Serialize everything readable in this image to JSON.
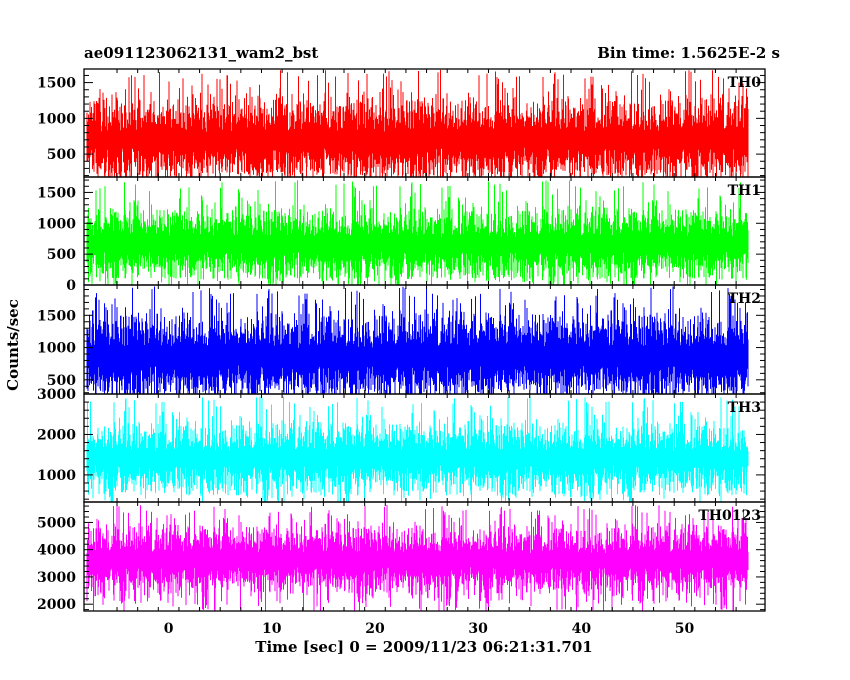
{
  "header": {
    "title_left": "ae091123062131_wam2_bst",
    "title_right": "Bin time: 1.5625E-2 s"
  },
  "axes": {
    "xlabel": "Time [sec] 0 = 2009/11/23 06:21:31.701",
    "ylabel": "Counts/sec"
  },
  "chart_data": {
    "type": "line",
    "xlim": [
      -8.2,
      57.8
    ],
    "x_data_range": [
      -7.9,
      56.1
    ],
    "x_ticks": [
      0,
      10,
      20,
      30,
      40,
      50
    ],
    "grid": false,
    "series": [
      {
        "name": "TH0",
        "color": "#ff0000",
        "ylim": [
          180,
          1690
        ],
        "y_ticks": [
          500,
          1000,
          1500
        ],
        "mean": 700,
        "spread": 300,
        "low_envelope": 250,
        "peak_max": 1680
      },
      {
        "name": "TH1",
        "color": "#00ff00",
        "ylim": [
          0,
          1750
        ],
        "y_ticks": [
          0,
          500,
          1000,
          1500
        ],
        "mean": 650,
        "spread": 300,
        "low_envelope": 120,
        "peak_max": 1700
      },
      {
        "name": "TH2",
        "color": "#0000ff",
        "ylim": [
          280,
          1970
        ],
        "y_ticks": [
          500,
          1000,
          1500
        ],
        "mean": 850,
        "spread": 350,
        "low_envelope": 380,
        "peak_max": 1950
      },
      {
        "name": "TH3",
        "color": "#00ffff",
        "ylim": [
          330,
          3000
        ],
        "y_ticks": [
          1000,
          2000,
          3000
        ],
        "mean": 1400,
        "spread": 450,
        "low_envelope": 550,
        "peak_max": 2950
      },
      {
        "name": "TH0123",
        "color": "#ff00ff",
        "ylim": [
          1750,
          5750
        ],
        "y_ticks": [
          2000,
          3000,
          4000,
          5000
        ],
        "mean": 3600,
        "spread": 650,
        "low_envelope": 1900,
        "peak_max": 5650
      }
    ]
  }
}
